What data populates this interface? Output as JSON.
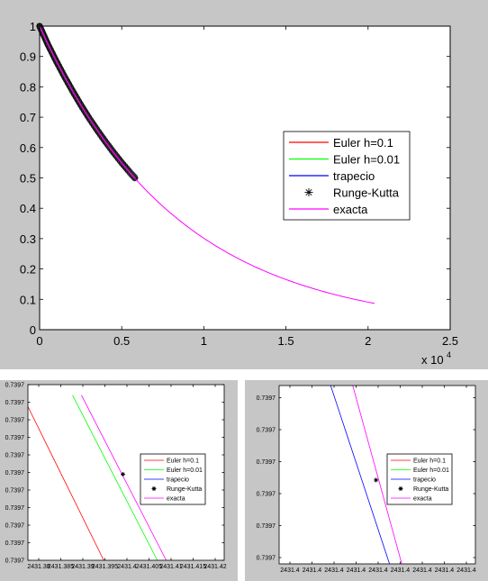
{
  "chart_data": [
    {
      "type": "line",
      "x_tick_labels": [
        "0",
        "0.5",
        "1",
        "1.5",
        "2",
        "2.5"
      ],
      "x_ticks": [
        0,
        0.5,
        1,
        1.5,
        2,
        2.5
      ],
      "y_tick_labels": [
        "0",
        "0.1",
        "0.2",
        "0.3",
        "0.4",
        "0.5",
        "0.6",
        "0.7",
        "0.8",
        "0.9",
        "1"
      ],
      "y_ticks": [
        0,
        0.1,
        0.2,
        0.3,
        0.4,
        0.5,
        0.6,
        0.7,
        0.8,
        0.9,
        1
      ],
      "xlim": [
        0,
        2.5
      ],
      "ylim": [
        0,
        1
      ],
      "x_exponent_label": "x 10",
      "x_exponent_power": "4",
      "legend_position": "right",
      "legend": [
        {
          "label": "Euler h=0.1",
          "color": "#ff0000",
          "marker": "line"
        },
        {
          "label": "Euler h=0.01",
          "color": "#00ff00",
          "marker": "line"
        },
        {
          "label": "trapecio",
          "color": "#0000ff",
          "marker": "line"
        },
        {
          "label": "Runge-Kutta",
          "color": "#000000",
          "marker": "star"
        },
        {
          "label": "exacta",
          "color": "#ff00ff",
          "marker": "line"
        }
      ],
      "series": [
        {
          "name": "Runge-Kutta",
          "color": "#000000",
          "x": [
            0,
            0.05,
            0.1,
            0.15,
            0.2,
            0.25,
            0.3,
            0.35,
            0.4,
            0.45,
            0.5,
            0.55,
            0.58
          ],
          "y": [
            1,
            0.94,
            0.886,
            0.835,
            0.787,
            0.741,
            0.698,
            0.658,
            0.62,
            0.584,
            0.55,
            0.518,
            0.5
          ]
        },
        {
          "name": "exacta",
          "color": "#ff00ff",
          "x": [
            0,
            0.25,
            0.5,
            0.75,
            1,
            1.25,
            1.5,
            1.75,
            2.04
          ],
          "y": [
            1,
            0.741,
            0.549,
            0.407,
            0.301,
            0.223,
            0.166,
            0.123,
            0.08
          ]
        }
      ]
    },
    {
      "type": "line",
      "x_tick_labels": [
        "2431.38",
        "2431.385",
        "2431.39",
        "2431.395",
        "2431.4",
        "2431.405",
        "2431.41",
        "2431.415",
        "2431.42"
      ],
      "y_tick_labels": [
        "0.7397",
        "0.7397",
        "0.7397",
        "0.7397",
        "0.7397",
        "0.7397",
        "0.7397",
        "0.7397",
        "0.7397",
        "0.7397",
        "0.7397"
      ],
      "xlim": [
        2431.378,
        2431.422
      ],
      "ylim": [
        0,
        10
      ],
      "legend_position": "right",
      "legend": [
        {
          "label": "Euler h=0.1",
          "color": "#ff0000",
          "marker": "line"
        },
        {
          "label": "Euler h=0.01",
          "color": "#00ff00",
          "marker": "line"
        },
        {
          "label": "trapecio",
          "color": "#0000ff",
          "marker": "line"
        },
        {
          "label": "Runge-Kutta",
          "color": "#000000",
          "marker": "star"
        },
        {
          "label": "exacta",
          "color": "#ff00ff",
          "marker": "line"
        }
      ],
      "series": [
        {
          "name": "Euler h=0.1",
          "color": "#ff0000",
          "x": [
            2431.378,
            2431.395
          ],
          "y": [
            8.75,
            0
          ]
        },
        {
          "name": "Euler h=0.01",
          "color": "#00ff00",
          "x": [
            2431.388,
            2431.407
          ],
          "y": [
            9.4,
            0
          ]
        },
        {
          "name": "exacta",
          "color": "#ff00ff",
          "x": [
            2431.39,
            2431.409
          ],
          "y": [
            9.4,
            0
          ]
        },
        {
          "name": "Runge-Kutta",
          "color": "#000000",
          "marker": "star",
          "x": [
            2431.3993
          ],
          "y": [
            4.9
          ]
        }
      ]
    },
    {
      "type": "line",
      "x_tick_labels": [
        "2431.4",
        "2431.4",
        "2431.4",
        "2431.4",
        "2431.4",
        "2431.4",
        "2431.4",
        "2431.4",
        "2431.4"
      ],
      "y_tick_labels": [
        "0.7397",
        "0.7397",
        "0.7397",
        "0.7397",
        "0.7397",
        "0.7397"
      ],
      "xlim": [
        0,
        8
      ],
      "ylim": [
        0,
        10
      ],
      "legend_position": "right",
      "legend": [
        {
          "label": "Euler h=0.1",
          "color": "#ff0000",
          "marker": "line"
        },
        {
          "label": "Euler h=0.01",
          "color": "#00ff00",
          "marker": "line"
        },
        {
          "label": "trapecio",
          "color": "#0000ff",
          "marker": "line"
        },
        {
          "label": "Runge-Kutta",
          "color": "#000000",
          "marker": "star"
        },
        {
          "label": "exacta",
          "color": "#ff00ff",
          "marker": "line"
        }
      ],
      "series": [
        {
          "name": "trapecio",
          "color": "#0000ff",
          "x": [
            2.1,
            4.5
          ],
          "y": [
            10,
            0
          ]
        },
        {
          "name": "exacta",
          "color": "#ff00ff",
          "x": [
            3.0,
            5.0
          ],
          "y": [
            10,
            0
          ]
        },
        {
          "name": "Runge-Kutta",
          "color": "#000000",
          "marker": "star",
          "x": [
            3.95
          ],
          "y": [
            4.7
          ]
        }
      ]
    }
  ]
}
